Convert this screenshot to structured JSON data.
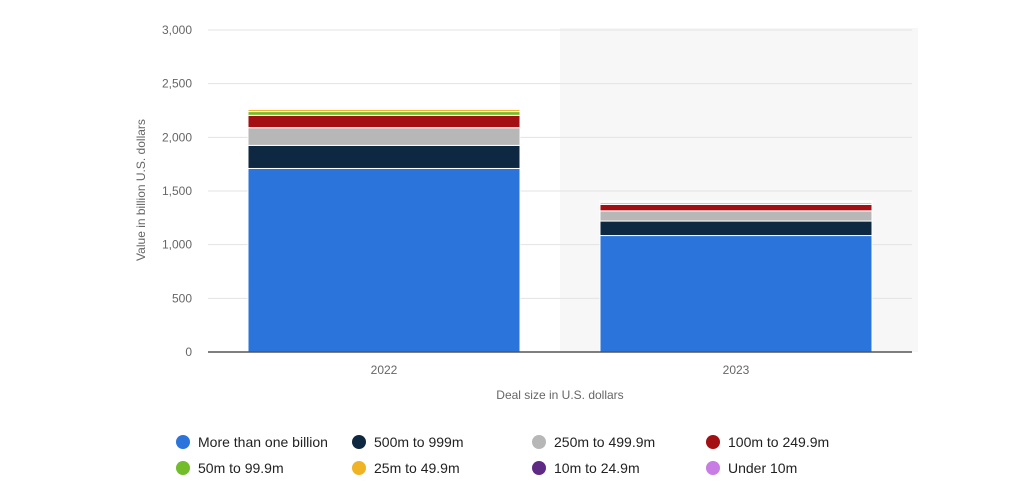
{
  "chart_data": {
    "type": "bar",
    "stacked": true,
    "categories": [
      "2022",
      "2023"
    ],
    "xlabel": "Deal size in U.S. dollars",
    "ylabel": "Value in billion U.S. dollars",
    "ylim": [
      0,
      3000
    ],
    "yticks": [
      0,
      500,
      1000,
      1500,
      2000,
      2500,
      3000
    ],
    "ytick_labels": [
      "0",
      "500",
      "1,000",
      "1,500",
      "2,000",
      "2,500",
      "3,000"
    ],
    "grid": true,
    "legend_position": "bottom",
    "series": [
      {
        "name": "More than one billion",
        "color": "#2a74dc",
        "values": [
          1710,
          1085
        ]
      },
      {
        "name": "500m to 999m",
        "color": "#0e2841",
        "values": [
          215,
          135
        ]
      },
      {
        "name": "250m to 499.9m",
        "color": "#b7b7b7",
        "values": [
          165,
          95
        ]
      },
      {
        "name": "100m to 249.9m",
        "color": "#a30f12",
        "values": [
          115,
          60
        ]
      },
      {
        "name": "50m to 99.9m",
        "color": "#73bc2a",
        "values": [
          35,
          15
        ]
      },
      {
        "name": "25m to 49.9m",
        "color": "#f0b323",
        "values": [
          20,
          10
        ]
      },
      {
        "name": "10m to 24.9m",
        "color": "#5e2a84",
        "values": [
          10,
          5
        ]
      },
      {
        "name": "Under 10m",
        "color": "#c77de3",
        "values": [
          5,
          3
        ]
      }
    ]
  }
}
